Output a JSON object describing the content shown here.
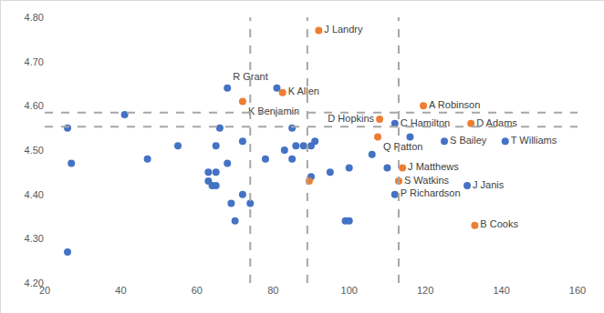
{
  "chart_data": {
    "type": "scatter",
    "xlim": [
      20,
      160
    ],
    "xticks": [
      20,
      40,
      60,
      80,
      100,
      120,
      140,
      160
    ],
    "ylim": [
      4.2,
      4.8
    ],
    "yticks": [
      {
        "value": 4.2,
        "label": "4.20"
      },
      {
        "value": 4.3,
        "label": "4.30"
      },
      {
        "value": 4.4,
        "label": "4.40"
      },
      {
        "value": 4.5,
        "label": "4.50"
      },
      {
        "value": 4.6,
        "label": "4.60"
      },
      {
        "value": 4.7,
        "label": "4.70"
      },
      {
        "value": 4.8,
        "label": "4.80"
      }
    ],
    "grid": false,
    "marker": "circle",
    "vlines": [
      74,
      89,
      113
    ],
    "hlines": [
      4.585,
      4.553
    ],
    "series": [
      {
        "color": "#4472c4",
        "x": [
          26,
          27,
          26,
          41,
          47,
          55,
          63,
          63,
          64,
          65,
          65,
          65,
          66,
          68,
          68,
          69,
          70,
          72,
          72,
          74,
          78,
          81,
          83,
          85,
          85,
          86,
          88,
          90,
          90,
          91,
          95,
          99,
          100,
          100,
          106,
          110,
          112,
          112,
          116,
          125,
          131,
          141
        ],
        "values": [
          4.55,
          4.47,
          4.27,
          4.58,
          4.48,
          4.51,
          4.45,
          4.43,
          4.42,
          4.45,
          4.42,
          4.51,
          4.55,
          4.64,
          4.47,
          4.38,
          4.34,
          4.52,
          4.4,
          4.38,
          4.48,
          4.64,
          4.5,
          4.55,
          4.48,
          4.51,
          4.51,
          4.44,
          4.51,
          4.52,
          4.45,
          4.34,
          4.34,
          4.46,
          4.49,
          4.46,
          4.56,
          4.4,
          4.53,
          4.52,
          4.42,
          4.52
        ],
        "labels": [
          null,
          null,
          null,
          null,
          null,
          null,
          null,
          null,
          null,
          null,
          null,
          null,
          null,
          "R Grant",
          null,
          null,
          null,
          null,
          null,
          null,
          null,
          null,
          null,
          null,
          null,
          null,
          null,
          null,
          null,
          null,
          null,
          null,
          null,
          null,
          null,
          null,
          "C Hamilton",
          "P Richardson",
          null,
          "S Bailey",
          "J Janis",
          "T Williams"
        ]
      },
      {
        "color": "#ed7d31",
        "x": [
          92,
          82.5,
          72,
          108,
          107.5,
          89.5,
          119.5,
          132,
          114,
          113,
          133
        ],
        "values": [
          4.77,
          4.63,
          4.61,
          4.57,
          4.53,
          4.43,
          4.6,
          4.56,
          4.46,
          4.43,
          4.33
        ],
        "labels": [
          "J Landry",
          "K Allen",
          "K Benjamin",
          "D Hopkins",
          "Q Patton",
          null,
          "A Robinson",
          "D Adams",
          "J Matthews",
          "S Watkins",
          "B Cooks"
        ]
      }
    ]
  }
}
